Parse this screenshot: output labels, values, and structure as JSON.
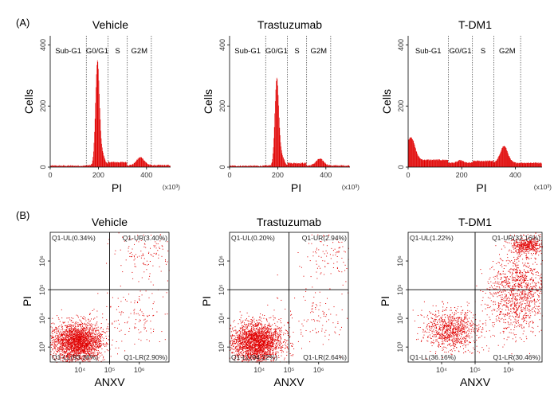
{
  "panel_labels": [
    "(A)",
    "(B)"
  ],
  "colors": {
    "data": "#e00000",
    "axis": "#000000",
    "divider": "#555555"
  },
  "chart_data": [
    {
      "type": "area",
      "title": "Vehicle",
      "xlabel": "PI",
      "ylabel": "Cells",
      "x_multiplier": "(x10³)",
      "xlim": [
        0,
        500
      ],
      "ylim": [
        0,
        430
      ],
      "xticks": [
        "0",
        "200",
        "400"
      ],
      "yticks": [
        "0",
        "200",
        "400"
      ],
      "phase_gates": [
        150,
        240,
        320,
        420
      ],
      "phase_labels": [
        "Sub-G1",
        "G0/G1",
        "S",
        "G2M"
      ],
      "peaks": [
        {
          "center": 196,
          "width": 8,
          "height": 325
        },
        {
          "center": 212,
          "width": 12,
          "height": 45
        },
        {
          "center": 375,
          "width": 16,
          "height": 26
        }
      ],
      "baseline": 6,
      "shoulder": 10,
      "sub_g1_level": 2
    },
    {
      "type": "area",
      "title": "Trastuzumab",
      "xlabel": "PI",
      "ylabel": "Cells",
      "x_multiplier": "(x10³)",
      "xlim": [
        0,
        500
      ],
      "ylim": [
        0,
        430
      ],
      "xticks": [
        "0",
        "200",
        "400"
      ],
      "yticks": [
        "0",
        "200",
        "400"
      ],
      "phase_gates": [
        150,
        240,
        320,
        420
      ],
      "phase_labels": [
        "Sub-G1",
        "G0/G1",
        "S",
        "G2M"
      ],
      "peaks": [
        {
          "center": 196,
          "width": 8,
          "height": 270
        },
        {
          "center": 212,
          "width": 12,
          "height": 40
        },
        {
          "center": 375,
          "width": 16,
          "height": 22
        }
      ],
      "baseline": 5,
      "shoulder": 8,
      "sub_g1_level": 2
    },
    {
      "type": "area",
      "title": "T-DM1",
      "xlabel": "PI",
      "ylabel": "Cells",
      "x_multiplier": "(x10³)",
      "xlim": [
        0,
        500
      ],
      "ylim": [
        0,
        430
      ],
      "xticks": [
        "0",
        "200",
        "400"
      ],
      "yticks": [
        "0",
        "200",
        "400"
      ],
      "phase_gates": [
        150,
        240,
        320,
        420
      ],
      "phase_labels": [
        "Sub-G1",
        "G0/G1",
        "S",
        "G2M"
      ],
      "peaks": [
        {
          "center": 10,
          "width": 15,
          "height": 75
        },
        {
          "center": 195,
          "width": 10,
          "height": 8
        },
        {
          "center": 358,
          "width": 14,
          "height": 55
        }
      ],
      "baseline": 14,
      "shoulder": 6,
      "sub_g1_level": 18
    },
    {
      "type": "scatter",
      "title": "Vehicle",
      "xlabel": "ANXV",
      "ylabel": "PI",
      "xscale": "log",
      "yscale": "log",
      "xlim": [
        1000,
        10000000
      ],
      "ylim": [
        300,
        10000000
      ],
      "xticks": [
        "10⁴",
        "10⁵",
        "10⁶"
      ],
      "yticks": [
        "10³",
        "10⁴",
        "10⁵",
        "10⁶"
      ],
      "quadrant_gate": {
        "x": 100000,
        "y": 100000
      },
      "quadrants": {
        "UL": "Q1-UL(0.34%)",
        "UR": "Q1-UR(3.40%)",
        "LL": "Q1-LL(93.36%)",
        "LR": "Q1-LR(2.90%)"
      },
      "clusters": [
        {
          "cx": 8000,
          "cy": 1500,
          "spread_x": 0.42,
          "spread_y": 0.34,
          "n": 2300
        },
        {
          "cx": 2000000,
          "cy": 2000000,
          "spread_x": 0.55,
          "spread_y": 0.45,
          "n": 130
        },
        {
          "cx": 900000,
          "cy": 12000,
          "spread_x": 0.6,
          "spread_y": 0.55,
          "n": 120
        }
      ]
    },
    {
      "type": "scatter",
      "title": "Trastuzumab",
      "xlabel": "ANXV",
      "ylabel": "PI",
      "xscale": "log",
      "yscale": "log",
      "xlim": [
        1000,
        10000000
      ],
      "ylim": [
        300,
        10000000
      ],
      "xticks": [
        "10⁴",
        "10⁵",
        "10⁶"
      ],
      "yticks": [
        "10³",
        "10⁴",
        "10⁵",
        "10⁶"
      ],
      "quadrant_gate": {
        "x": 100000,
        "y": 100000
      },
      "quadrants": {
        "UL": "Q1-UL(0.20%)",
        "UR": "Q1-UR(2.94%)",
        "LL": "Q1-LL(94.22%)",
        "LR": "Q1-LR(2.64%)"
      },
      "clusters": [
        {
          "cx": 8000,
          "cy": 1500,
          "spread_x": 0.42,
          "spread_y": 0.34,
          "n": 2300
        },
        {
          "cx": 2000000,
          "cy": 2000000,
          "spread_x": 0.55,
          "spread_y": 0.45,
          "n": 110
        },
        {
          "cx": 900000,
          "cy": 12000,
          "spread_x": 0.6,
          "spread_y": 0.55,
          "n": 110
        }
      ]
    },
    {
      "type": "scatter",
      "title": "T-DM1",
      "xlabel": "ANXV",
      "ylabel": "PI",
      "xscale": "log",
      "yscale": "log",
      "xlim": [
        1000,
        10000000
      ],
      "ylim": [
        300,
        10000000
      ],
      "xticks": [
        "10⁴",
        "10⁵",
        "10⁶"
      ],
      "yticks": [
        "10³",
        "10⁴",
        "10⁵",
        "10⁶"
      ],
      "quadrant_gate": {
        "x": 100000,
        "y": 100000
      },
      "quadrants": {
        "UL": "Q1-UL(1.22%)",
        "UR": "Q1-UR(32.16%)",
        "LL": "Q1-LL(36.16%)",
        "LR": "Q1-LR(30.46%)"
      },
      "clusters": [
        {
          "cx": 20000,
          "cy": 4000,
          "spread_x": 0.4,
          "spread_y": 0.35,
          "n": 900
        },
        {
          "cx": 2200000,
          "cy": 150000,
          "spread_x": 0.45,
          "spread_y": 0.5,
          "n": 800
        },
        {
          "cx": 3500000,
          "cy": 3500000,
          "spread_x": 0.25,
          "spread_y": 0.15,
          "n": 450
        },
        {
          "cx": 1500000,
          "cy": 15000,
          "spread_x": 0.4,
          "spread_y": 0.45,
          "n": 350
        }
      ]
    }
  ]
}
